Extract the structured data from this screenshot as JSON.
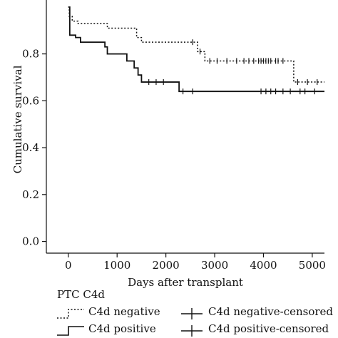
{
  "chart_data": {
    "type": "line",
    "title": "",
    "xlabel": "Days after transplant",
    "ylabel": "Cumulative survival",
    "xlim": [
      -450,
      5250
    ],
    "ylim": [
      -0.05,
      1.03
    ],
    "x_ticks": [
      0,
      1000,
      2000,
      3000,
      4000,
      5000
    ],
    "x_tick_labels": [
      "0",
      "1000",
      "2000",
      "3000",
      "4000",
      "5000"
    ],
    "y_ticks": [
      0.0,
      0.2,
      0.4,
      0.6,
      0.8
    ],
    "y_tick_labels": [
      "0.0",
      "0.2",
      "0.4",
      "0.6",
      "0.8"
    ],
    "grid": false,
    "legend_placement": "bottom",
    "legend_title": "PTC C4d",
    "legend": [
      "C4d negative",
      "C4d positive",
      "C4d negative-censored",
      "C4d positive-censored"
    ],
    "series": [
      {
        "name": "C4d negative",
        "style": "dotted",
        "steps": [
          [
            0,
            1.0
          ],
          [
            20,
            0.96
          ],
          [
            80,
            0.94
          ],
          [
            200,
            0.93
          ],
          [
            800,
            0.91
          ],
          [
            1400,
            0.87
          ],
          [
            1500,
            0.85
          ],
          [
            2650,
            0.81
          ],
          [
            2800,
            0.77
          ],
          [
            4620,
            0.68
          ],
          [
            5250,
            0.68
          ]
        ],
        "censored_x": [
          2550,
          2700,
          2900,
          3050,
          3250,
          3450,
          3600,
          3700,
          3800,
          3900,
          3950,
          4000,
          4050,
          4100,
          4150,
          4250,
          4300,
          4400,
          4700,
          4900,
          5100
        ]
      },
      {
        "name": "C4d positive",
        "style": "solid",
        "steps": [
          [
            0,
            1.0
          ],
          [
            30,
            0.88
          ],
          [
            150,
            0.87
          ],
          [
            250,
            0.85
          ],
          [
            750,
            0.83
          ],
          [
            800,
            0.8
          ],
          [
            1200,
            0.77
          ],
          [
            1350,
            0.74
          ],
          [
            1430,
            0.71
          ],
          [
            1500,
            0.68
          ],
          [
            2270,
            0.64
          ],
          [
            5250,
            0.64
          ]
        ],
        "censored_x": [
          1650,
          1800,
          1950,
          2350,
          2550,
          3950,
          4050,
          4150,
          4250,
          4400,
          4550,
          4750,
          4850,
          5050
        ]
      }
    ]
  }
}
